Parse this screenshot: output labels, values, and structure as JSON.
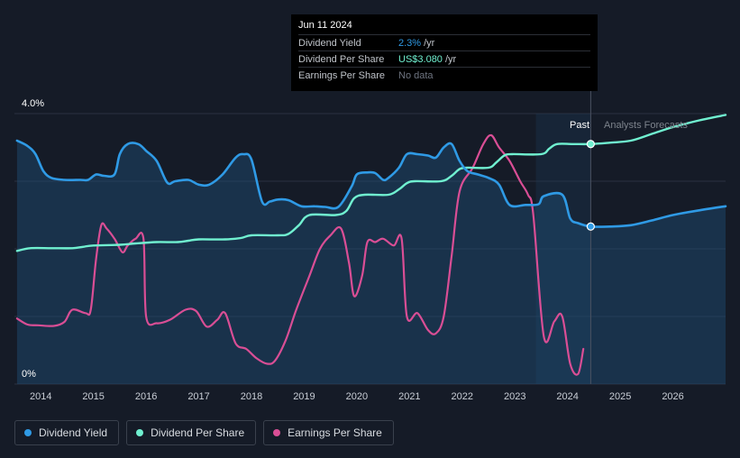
{
  "tooltip": {
    "date": "Jun 11 2024",
    "rows": [
      {
        "label": "Dividend Yield",
        "value": "2.3%",
        "unit": "/yr",
        "color": "#2f9ae5"
      },
      {
        "label": "Dividend Per Share",
        "value": "US$3.080",
        "unit": "/yr",
        "color": "#70f0d0"
      },
      {
        "label": "Earnings Per Share",
        "value": "No data",
        "unit": "",
        "color": "#6e7480"
      }
    ]
  },
  "legend": [
    {
      "label": "Dividend Yield",
      "color": "#2f9ae5"
    },
    {
      "label": "Dividend Per Share",
      "color": "#70f0d0"
    },
    {
      "label": "Earnings Per Share",
      "color": "#d94e95"
    }
  ],
  "chart_data": {
    "type": "line",
    "y_top_label": "4.0%",
    "y_bottom_label": "0%",
    "ylim": [
      0,
      4.0
    ],
    "xlim": [
      2013.5,
      2027.0
    ],
    "x_ticks": [
      2014,
      2015,
      2016,
      2017,
      2018,
      2019,
      2020,
      2021,
      2022,
      2023,
      2024,
      2025,
      2026
    ],
    "x_tick_labels": [
      "2014",
      "2015",
      "2016",
      "2017",
      "2018",
      "2019",
      "2020",
      "2021",
      "2022",
      "2023",
      "2024",
      "2025",
      "2026"
    ],
    "grid": true,
    "past_label": "Past",
    "forecast_label": "Analysts Forecasts",
    "past_region_start": 2023.4,
    "divider_x": 2024.44,
    "series": [
      {
        "name": "Dividend Yield",
        "color": "#2f9ae5",
        "x": [
          2013.55,
          2013.75,
          2013.9,
          2014.05,
          2014.2,
          2014.45,
          2014.75,
          2014.9,
          2015.05,
          2015.2,
          2015.4,
          2015.5,
          2015.65,
          2015.85,
          2016.0,
          2016.2,
          2016.4,
          2016.55,
          2016.8,
          2017.0,
          2017.2,
          2017.45,
          2017.7,
          2017.85,
          2018.0,
          2018.2,
          2018.35,
          2018.5,
          2018.7,
          2018.95,
          2019.2,
          2019.4,
          2019.65,
          2019.9,
          2020.0,
          2020.2,
          2020.35,
          2020.5,
          2020.6,
          2020.8,
          2020.95,
          2021.15,
          2021.35,
          2021.5,
          2021.65,
          2021.8,
          2021.95,
          2022.1,
          2022.3,
          2022.5,
          2022.7,
          2022.9,
          2023.2,
          2023.45,
          2023.55,
          2023.9,
          2024.05,
          2024.2,
          2024.44,
          2024.8,
          2025.2,
          2025.6,
          2026.0,
          2026.5,
          2027.0
        ],
        "y": [
          3.6,
          3.52,
          3.4,
          3.15,
          3.05,
          3.02,
          3.02,
          3.02,
          3.1,
          3.08,
          3.1,
          3.4,
          3.55,
          3.55,
          3.45,
          3.3,
          2.98,
          3.0,
          3.02,
          2.95,
          2.95,
          3.1,
          3.35,
          3.4,
          3.32,
          2.7,
          2.7,
          2.73,
          2.72,
          2.63,
          2.63,
          2.62,
          2.62,
          2.92,
          3.1,
          3.13,
          3.12,
          3.02,
          3.05,
          3.2,
          3.4,
          3.4,
          3.38,
          3.35,
          3.5,
          3.55,
          3.3,
          3.15,
          3.1,
          3.05,
          2.95,
          2.65,
          2.65,
          2.66,
          2.78,
          2.8,
          2.45,
          2.38,
          2.33,
          2.33,
          2.35,
          2.42,
          2.5,
          2.57,
          2.63
        ]
      },
      {
        "name": "Dividend Per Share",
        "color": "#70f0d0",
        "x": [
          2013.55,
          2013.8,
          2014.2,
          2014.6,
          2014.8,
          2015.0,
          2015.5,
          2015.8,
          2016.2,
          2016.6,
          2016.8,
          2017.0,
          2017.5,
          2017.8,
          2018.0,
          2018.5,
          2018.7,
          2018.9,
          2019.1,
          2019.6,
          2019.8,
          2019.95,
          2020.15,
          2020.6,
          2020.8,
          2020.95,
          2021.1,
          2021.6,
          2021.8,
          2021.95,
          2022.1,
          2022.5,
          2022.65,
          2022.8,
          2022.95,
          2023.5,
          2023.65,
          2023.8,
          2024.1,
          2024.44,
          2024.8,
          2025.2,
          2025.6,
          2026.0,
          2026.5,
          2027.0
        ],
        "y": [
          1.97,
          2.01,
          2.01,
          2.01,
          2.03,
          2.05,
          2.06,
          2.08,
          2.1,
          2.1,
          2.12,
          2.14,
          2.14,
          2.16,
          2.2,
          2.2,
          2.22,
          2.35,
          2.5,
          2.5,
          2.56,
          2.75,
          2.8,
          2.8,
          2.88,
          2.97,
          3.0,
          3.0,
          3.08,
          3.18,
          3.2,
          3.2,
          3.28,
          3.38,
          3.4,
          3.4,
          3.48,
          3.55,
          3.55,
          3.55,
          3.57,
          3.6,
          3.7,
          3.8,
          3.9,
          3.98
        ]
      },
      {
        "name": "Earnings Per Share",
        "color": "#d94e95",
        "x": [
          2013.55,
          2013.75,
          2013.95,
          2014.25,
          2014.45,
          2014.6,
          2014.85,
          2014.95,
          2015.05,
          2015.15,
          2015.25,
          2015.4,
          2015.55,
          2015.65,
          2015.8,
          2015.95,
          2016.0,
          2016.2,
          2016.45,
          2016.75,
          2016.95,
          2017.15,
          2017.35,
          2017.5,
          2017.7,
          2017.9,
          2018.1,
          2018.3,
          2018.45,
          2018.65,
          2018.85,
          2019.1,
          2019.3,
          2019.5,
          2019.7,
          2019.85,
          2019.95,
          2020.1,
          2020.2,
          2020.35,
          2020.5,
          2020.7,
          2020.85,
          2020.95,
          2021.15,
          2021.35,
          2021.5,
          2021.65,
          2021.8,
          2021.95,
          2022.2,
          2022.4,
          2022.55,
          2022.7,
          2022.9,
          2023.1,
          2023.25,
          2023.35,
          2023.55,
          2023.75,
          2023.9,
          2024.05,
          2024.2,
          2024.3
        ],
        "y": [
          0.97,
          0.88,
          0.87,
          0.86,
          0.92,
          1.1,
          1.05,
          1.1,
          1.85,
          2.35,
          2.3,
          2.15,
          1.95,
          2.05,
          2.15,
          2.15,
          1.0,
          0.9,
          0.95,
          1.1,
          1.08,
          0.85,
          0.95,
          1.05,
          0.6,
          0.52,
          0.38,
          0.3,
          0.35,
          0.65,
          1.1,
          1.6,
          2.0,
          2.2,
          2.3,
          1.8,
          1.3,
          1.6,
          2.1,
          2.1,
          2.15,
          2.05,
          2.15,
          1.0,
          1.05,
          0.8,
          0.75,
          1.0,
          1.9,
          2.85,
          3.2,
          3.55,
          3.68,
          3.5,
          3.3,
          3.0,
          2.8,
          2.5,
          0.7,
          0.93,
          1.0,
          0.3,
          0.15,
          0.52
        ]
      }
    ],
    "highlight_points": [
      {
        "series": "Dividend Per Share",
        "x": 2024.44,
        "y": 3.55
      },
      {
        "series": "Dividend Yield",
        "x": 2024.44,
        "y": 2.33
      }
    ]
  }
}
